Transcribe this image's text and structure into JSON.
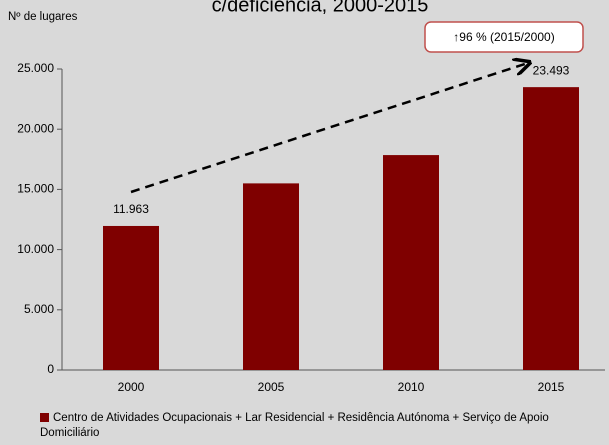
{
  "chart_data": {
    "type": "bar",
    "title": "c/deficiência, 2000-2015",
    "y_label": "Nº de lugares",
    "categories": [
      "2000",
      "2005",
      "2010",
      "2015"
    ],
    "series": [
      {
        "name": "Centro de Atividades Ocupacionais + Lar Residencial + Residência Autónoma + Serviço de Apoio Domiciliário",
        "color": "#7f0000",
        "values": [
          11963,
          15500,
          17850,
          23493
        ],
        "value_labels": [
          "11.963",
          null,
          null,
          "23.493"
        ]
      }
    ],
    "ylim": [
      0,
      25000
    ],
    "yticks": [
      0,
      {
        "value": 5000,
        "label": "5.000"
      },
      {
        "value": 10000,
        "label": "10.000"
      },
      {
        "value": 15000,
        "label": "15.000"
      },
      {
        "value": 20000,
        "label": "20.000"
      },
      {
        "value": 25000,
        "label": "25.000"
      }
    ],
    "annotation": "↑96 % (2015/2000)",
    "legend": "bottom"
  }
}
